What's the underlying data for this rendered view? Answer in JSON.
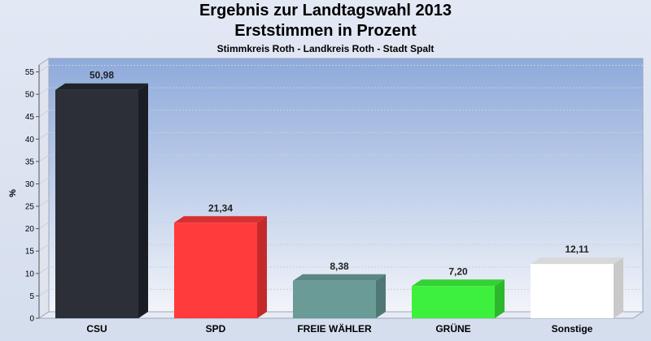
{
  "header": {
    "title_line1": "Ergebnis zur Landtagswahl 2013",
    "title_line2": "Erststimmen in Prozent",
    "subtitle": "Stimmkreis Roth - Landkreis Roth - Stadt Spalt"
  },
  "chart_data": {
    "type": "bar",
    "ylabel": "%",
    "ylim": [
      0,
      58
    ],
    "yticks": [
      0,
      5,
      10,
      15,
      20,
      25,
      30,
      35,
      40,
      45,
      50,
      55
    ],
    "grid": true,
    "categories": [
      "CSU",
      "SPD",
      "FREIE WÄHLER",
      "GRÜNE",
      "Sonstige"
    ],
    "values": [
      50.98,
      21.34,
      8.38,
      7.2,
      12.11
    ],
    "value_labels": [
      "50,98",
      "21,34",
      "8,38",
      "7,20",
      "12,11"
    ],
    "colors": [
      "#2c2f38",
      "#ff3b3b",
      "#6a9b97",
      "#3ef03e",
      "#ffffff"
    ],
    "side_colors": [
      "#1b1d24",
      "#c42a2a",
      "#4f7875",
      "#2cb82c",
      "#c9c9c9"
    ],
    "top_colors": [
      "#1f2229",
      "#d83030",
      "#5a8784",
      "#34d134",
      "#d8d8d8"
    ]
  }
}
